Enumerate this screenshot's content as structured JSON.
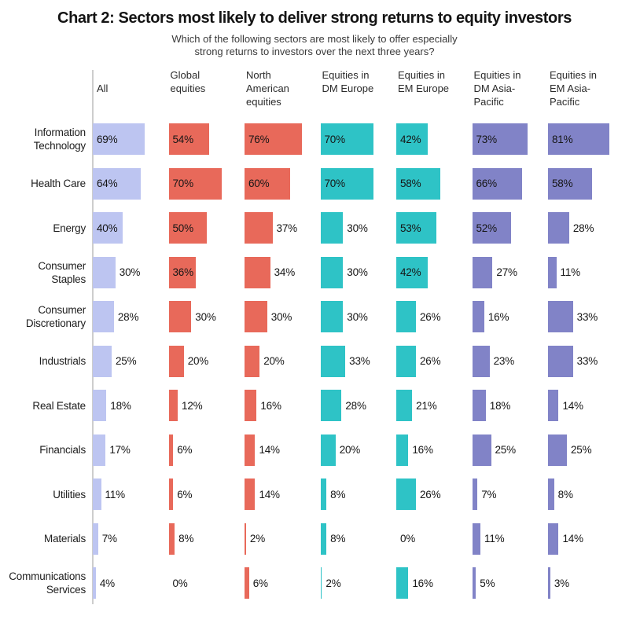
{
  "chart_data": {
    "type": "bar",
    "orientation": "horizontal",
    "unit": "%",
    "title": "Chart 2: Sectors most likely to deliver strong returns to equity investors",
    "subtitle_lines": [
      "Which of the following sectors are most likely to offer especially",
      "strong returns to investors over the next three years?"
    ],
    "legend_position": "column-headers",
    "grid": "off",
    "value_labels": "shown-as-percent",
    "categories": [
      "Information Technology",
      "Health Care",
      "Energy",
      "Consumer Staples",
      "Consumer Discretionary",
      "Industrials",
      "Real Estate",
      "Financials",
      "Utilities",
      "Materials",
      "Communications Services"
    ],
    "series": [
      {
        "name": "All",
        "color": "#bdc5f1",
        "values": [
          69,
          64,
          40,
          30,
          28,
          25,
          18,
          17,
          11,
          7,
          4
        ]
      },
      {
        "name": "Global equities",
        "color": "#e8695a",
        "values": [
          54,
          70,
          50,
          36,
          30,
          20,
          12,
          6,
          6,
          8,
          0
        ]
      },
      {
        "name": "North American equities",
        "color": "#e8695a",
        "values": [
          76,
          60,
          37,
          34,
          30,
          20,
          16,
          14,
          14,
          2,
          6
        ]
      },
      {
        "name": "Equities in DM Europe",
        "color": "#2ec3c6",
        "values": [
          70,
          70,
          30,
          30,
          30,
          33,
          28,
          20,
          8,
          8,
          2
        ]
      },
      {
        "name": "Equities in EM Europe",
        "color": "#2ec3c6",
        "values": [
          42,
          58,
          53,
          42,
          26,
          26,
          21,
          16,
          26,
          0,
          16
        ]
      },
      {
        "name": "Equities in DM Asia-Pacific",
        "color": "#8183c7",
        "values": [
          73,
          66,
          52,
          27,
          16,
          23,
          18,
          25,
          7,
          11,
          5
        ]
      },
      {
        "name": "Equities in EM Asia-Pacific",
        "color": "#8183c7",
        "values": [
          81,
          58,
          28,
          11,
          33,
          33,
          14,
          25,
          8,
          14,
          3
        ]
      }
    ]
  },
  "layout_text": {
    "column_header_lines": [
      [
        "All"
      ],
      [
        "Global",
        "equities"
      ],
      [
        "North",
        "American",
        "equities"
      ],
      [
        "Equities in",
        "DM Europe"
      ],
      [
        "Equities in",
        "EM Europe"
      ],
      [
        "Equities in",
        "DM Asia-",
        "Pacific"
      ],
      [
        "Equities in",
        "EM Asia-",
        "Pacific"
      ]
    ],
    "row_label_lines": [
      [
        "Information",
        "Technology"
      ],
      [
        "Health Care"
      ],
      [
        "Energy"
      ],
      [
        "Consumer",
        "Staples"
      ],
      [
        "Consumer",
        "Discretionary"
      ],
      [
        "Industrials"
      ],
      [
        "Real Estate"
      ],
      [
        "Financials"
      ],
      [
        "Utilities"
      ],
      [
        "Materials"
      ],
      [
        "Communications",
        "Services"
      ]
    ]
  }
}
